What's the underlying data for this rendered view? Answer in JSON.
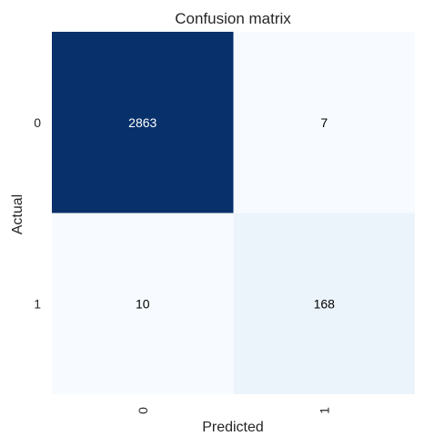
{
  "chart_data": {
    "type": "heatmap",
    "title": "Confusion matrix",
    "xlabel": "Predicted",
    "ylabel": "Actual",
    "x_categories": [
      "0",
      "1"
    ],
    "y_categories": [
      "0",
      "1"
    ],
    "values": [
      [
        2863,
        7
      ],
      [
        10,
        168
      ]
    ],
    "colormap": "Blues",
    "colors": {
      "min": "#f7fbff",
      "max": "#08306b",
      "light_text": "#ffffff",
      "dark_text": "#000000"
    },
    "colorbar": false,
    "grid": false
  }
}
